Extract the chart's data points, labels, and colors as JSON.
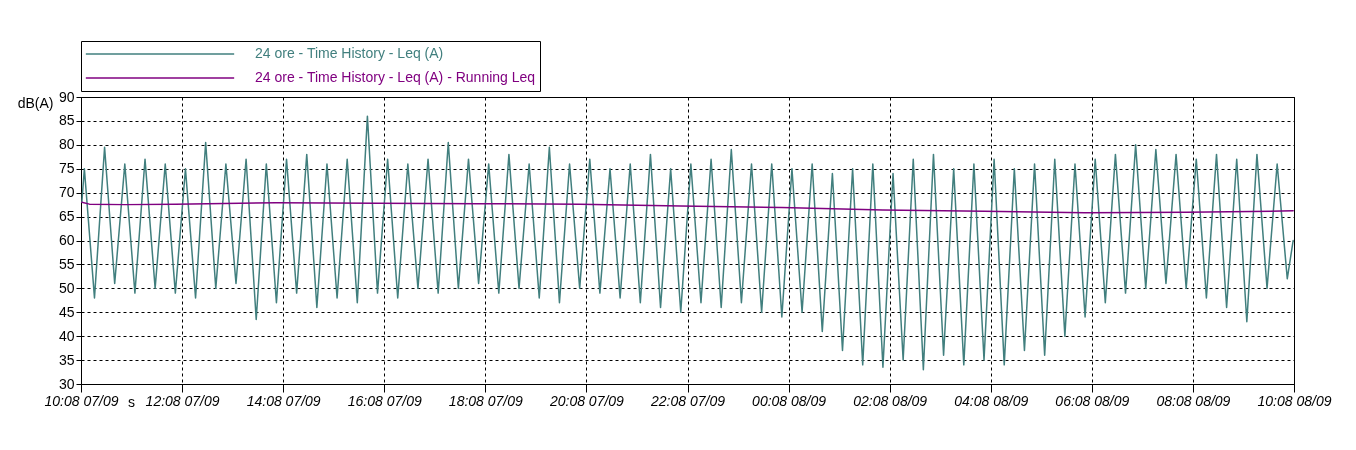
{
  "chart_data": {
    "type": "line",
    "xlabel": "s",
    "ylabel": "dB(A)",
    "xlim": [
      "--09-07T10:08",
      "--09-08T10:08"
    ],
    "xticks": [
      {
        "value": "--09-07T10:08",
        "label": "10:08 07/09"
      },
      {
        "value": "--09-07T12:08",
        "label": "12:08 07/09"
      },
      {
        "value": "--09-07T14:08",
        "label": "14:08 07/09"
      },
      {
        "value": "--09-07T16:08",
        "label": "16:08 07/09"
      },
      {
        "value": "--09-07T18:08",
        "label": "18:08 07/09"
      },
      {
        "value": "--09-07T20:08",
        "label": "20:08 07/09"
      },
      {
        "value": "--09-07T22:08",
        "label": "22:08 07/09"
      },
      {
        "value": "--09-08T00:08",
        "label": "00:08 08/09"
      },
      {
        "value": "--09-08T02:08",
        "label": "02:08 08/09"
      },
      {
        "value": "--09-08T04:08",
        "label": "04:08 08/09"
      },
      {
        "value": "--09-08T06:08",
        "label": "06:08 08/09"
      },
      {
        "value": "--09-08T08:08",
        "label": "08:08 08/09"
      },
      {
        "value": "--09-08T10:08",
        "label": "10:08 08/09"
      }
    ],
    "ylim": [
      30,
      90
    ],
    "yticks": [
      30,
      35,
      40,
      45,
      50,
      55,
      60,
      65,
      70,
      75,
      80,
      85,
      90
    ],
    "grid": true,
    "legend": "top",
    "marker": "none",
    "line_style": "solid",
    "x": [
      "--09-07T10:09",
      "--09-07T10:12",
      "--09-07T10:24",
      "--09-07T10:36",
      "--09-07T10:48",
      "--09-07T11:00",
      "--09-07T11:12",
      "--09-07T11:24",
      "--09-07T11:36",
      "--09-07T11:48",
      "--09-07T12:00",
      "--09-07T12:12",
      "--09-07T12:24",
      "--09-07T12:36",
      "--09-07T12:48",
      "--09-07T13:00",
      "--09-07T13:12",
      "--09-07T13:24",
      "--09-07T13:36",
      "--09-07T13:48",
      "--09-07T14:00",
      "--09-07T14:12",
      "--09-07T14:24",
      "--09-07T14:36",
      "--09-07T14:48",
      "--09-07T15:00",
      "--09-07T15:12",
      "--09-07T15:24",
      "--09-07T15:36",
      "--09-07T15:48",
      "--09-07T16:00",
      "--09-07T16:12",
      "--09-07T16:24",
      "--09-07T16:36",
      "--09-07T16:48",
      "--09-07T17:00",
      "--09-07T17:12",
      "--09-07T17:24",
      "--09-07T17:36",
      "--09-07T17:48",
      "--09-07T18:00",
      "--09-07T18:12",
      "--09-07T18:24",
      "--09-07T18:36",
      "--09-07T18:48",
      "--09-07T19:00",
      "--09-07T19:12",
      "--09-07T19:24",
      "--09-07T19:36",
      "--09-07T19:48",
      "--09-07T20:00",
      "--09-07T20:12",
      "--09-07T20:24",
      "--09-07T20:36",
      "--09-07T20:48",
      "--09-07T21:00",
      "--09-07T21:12",
      "--09-07T21:24",
      "--09-07T21:36",
      "--09-07T21:48",
      "--09-07T22:00",
      "--09-07T22:12",
      "--09-07T22:24",
      "--09-07T22:36",
      "--09-07T22:48",
      "--09-07T23:00",
      "--09-07T23:12",
      "--09-07T23:24",
      "--09-07T23:36",
      "--09-07T23:48",
      "--09-08T00:00",
      "--09-08T00:12",
      "--09-08T00:24",
      "--09-08T00:36",
      "--09-08T00:48",
      "--09-08T01:00",
      "--09-08T01:12",
      "--09-08T01:24",
      "--09-08T01:36",
      "--09-08T01:48",
      "--09-08T02:00",
      "--09-08T02:12",
      "--09-08T02:24",
      "--09-08T02:36",
      "--09-08T02:48",
      "--09-08T03:00",
      "--09-08T03:12",
      "--09-08T03:24",
      "--09-08T03:36",
      "--09-08T03:48",
      "--09-08T04:00",
      "--09-08T04:12",
      "--09-08T04:24",
      "--09-08T04:36",
      "--09-08T04:48",
      "--09-08T05:00",
      "--09-08T05:12",
      "--09-08T05:24",
      "--09-08T05:36",
      "--09-08T05:48",
      "--09-08T06:00",
      "--09-08T06:12",
      "--09-08T06:24",
      "--09-08T06:36",
      "--09-08T06:48",
      "--09-08T07:00",
      "--09-08T07:12",
      "--09-08T07:24",
      "--09-08T07:36",
      "--09-08T07:48",
      "--09-08T08:00",
      "--09-08T08:12",
      "--09-08T08:24",
      "--09-08T08:36",
      "--09-08T08:48",
      "--09-08T09:00",
      "--09-08T09:12",
      "--09-08T09:24",
      "--09-08T09:36",
      "--09-08T09:48",
      "--09-08T10:00",
      "--09-08T10:07"
    ],
    "series": [
      {
        "name": "24 ore - Time History - Leq (A)",
        "color": "#417f7e",
        "values": [
          68,
          75,
          48,
          79.5,
          51,
          76,
          49,
          77,
          50,
          76,
          49,
          75,
          48,
          80.5,
          50,
          76,
          51,
          77,
          43.5,
          76,
          47,
          77,
          49,
          78,
          46,
          76,
          48,
          77,
          47,
          86,
          49,
          77,
          48,
          76,
          50,
          77,
          49,
          80.5,
          50,
          77,
          51,
          76,
          49,
          78,
          50,
          76,
          48,
          79.5,
          47,
          76,
          50,
          77,
          49,
          75,
          48,
          76,
          47,
          78,
          46,
          75,
          45,
          76,
          47,
          77,
          46,
          79,
          47,
          76,
          45,
          76,
          44,
          75,
          45,
          76,
          41,
          74,
          37,
          75,
          34,
          76,
          33.5,
          74,
          35,
          77,
          33,
          78,
          36,
          75,
          34,
          76,
          35,
          77,
          34,
          75,
          37,
          76,
          36,
          77,
          40,
          76,
          44,
          77,
          47,
          78,
          49,
          80,
          50,
          79,
          51,
          78,
          50,
          77,
          48,
          78,
          46,
          77,
          43,
          78,
          50,
          76,
          52,
          60
        ]
      },
      {
        "name": "24 ore - Time History - Leq (A) - Running Leq",
        "color": "#800080",
        "x": [
          "--09-07T10:09",
          "--09-07T10:18",
          "--09-07T11:00",
          "--09-07T12:00",
          "--09-07T14:00",
          "--09-07T16:00",
          "--09-07T18:00",
          "--09-07T20:00",
          "--09-07T22:00",
          "--09-08T00:00",
          "--09-08T02:00",
          "--09-08T04:00",
          "--09-08T06:00",
          "--09-08T08:00",
          "--09-08T10:07"
        ],
        "values": [
          68,
          67.6,
          67.5,
          67.6,
          67.9,
          67.8,
          67.7,
          67.6,
          67.2,
          66.9,
          66.4,
          66.1,
          65.8,
          65.9,
          66.2
        ]
      }
    ]
  }
}
